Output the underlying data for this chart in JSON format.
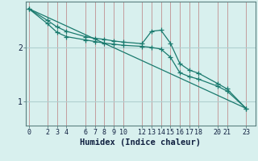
{
  "title": "",
  "xlabel": "Humidex (Indice chaleur)",
  "bg_color": "#d8f0ee",
  "line_color": "#1a7a6e",
  "grid_color_v": "#c09090",
  "grid_color_h": "#b0d0d0",
  "xticks": [
    0,
    2,
    3,
    4,
    6,
    7,
    8,
    9,
    10,
    12,
    13,
    14,
    15,
    16,
    17,
    18,
    20,
    21,
    23
  ],
  "yticks": [
    1,
    2
  ],
  "ylim": [
    0.55,
    2.85
  ],
  "xlim": [
    -0.3,
    24.0
  ],
  "line1_x": [
    0,
    2,
    3,
    4,
    6,
    7,
    8,
    9,
    10,
    12,
    13,
    14,
    15,
    16,
    17,
    18,
    20,
    21,
    23
  ],
  "line1_y": [
    2.72,
    2.5,
    2.38,
    2.3,
    2.2,
    2.17,
    2.15,
    2.12,
    2.1,
    2.07,
    2.3,
    2.32,
    2.08,
    1.7,
    1.58,
    1.52,
    1.33,
    1.23,
    0.87
  ],
  "line2_x": [
    0,
    2,
    3,
    4,
    6,
    7,
    8,
    9,
    10,
    12,
    13,
    14,
    15,
    16,
    17,
    18,
    20,
    21,
    23
  ],
  "line2_y": [
    2.72,
    2.44,
    2.28,
    2.2,
    2.14,
    2.11,
    2.08,
    2.06,
    2.04,
    2.02,
    2.0,
    1.97,
    1.82,
    1.53,
    1.46,
    1.41,
    1.28,
    1.19,
    0.87
  ],
  "line3_x": [
    0,
    23
  ],
  "line3_y": [
    2.72,
    0.87
  ],
  "marker": "+",
  "marker_size": 4,
  "line_width": 0.9,
  "tick_fontsize": 6,
  "label_fontsize": 7.5
}
